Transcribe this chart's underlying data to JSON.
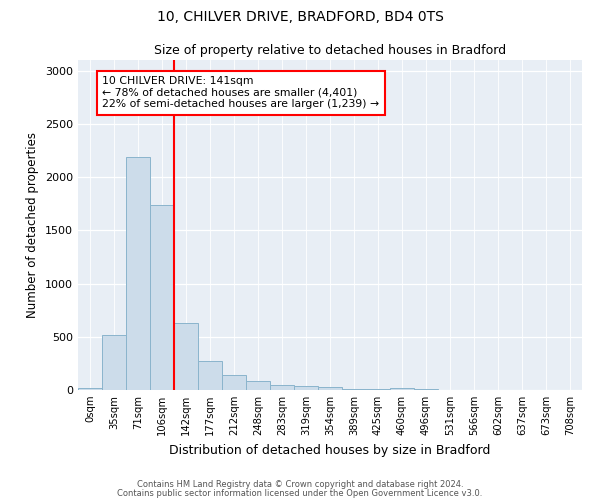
{
  "title1": "10, CHILVER DRIVE, BRADFORD, BD4 0TS",
  "title2": "Size of property relative to detached houses in Bradford",
  "xlabel": "Distribution of detached houses by size in Bradford",
  "ylabel": "Number of detached properties",
  "bins": [
    "0sqm",
    "35sqm",
    "71sqm",
    "106sqm",
    "142sqm",
    "177sqm",
    "212sqm",
    "248sqm",
    "283sqm",
    "319sqm",
    "354sqm",
    "389sqm",
    "425sqm",
    "460sqm",
    "496sqm",
    "531sqm",
    "566sqm",
    "602sqm",
    "637sqm",
    "673sqm",
    "708sqm"
  ],
  "values": [
    20,
    520,
    2190,
    1740,
    630,
    270,
    140,
    80,
    50,
    40,
    25,
    10,
    8,
    20,
    5,
    3,
    2,
    2,
    1,
    1,
    0
  ],
  "bar_color": "#ccdcea",
  "bar_edge_color": "#8ab4cc",
  "annotation_line1": "10 CHILVER DRIVE: 141sqm",
  "annotation_line2": "← 78% of detached houses are smaller (4,401)",
  "annotation_line3": "22% of semi-detached houses are larger (1,239) →",
  "ylim": [
    0,
    3100
  ],
  "yticks": [
    0,
    500,
    1000,
    1500,
    2000,
    2500,
    3000
  ],
  "footer1": "Contains HM Land Registry data © Crown copyright and database right 2024.",
  "footer2": "Contains public sector information licensed under the Open Government Licence v3.0.",
  "plot_bg_color": "#e8eef5",
  "fig_bg_color": "#ffffff"
}
